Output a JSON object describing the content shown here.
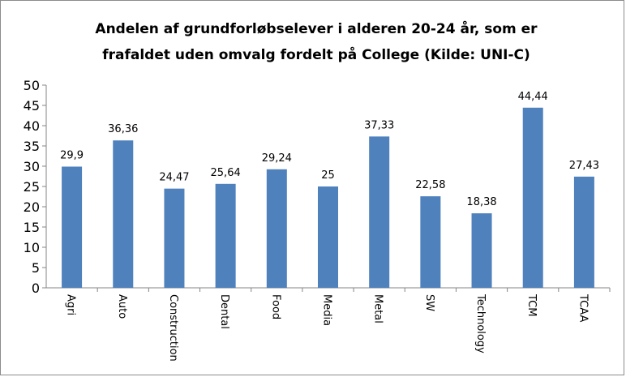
{
  "chart_data": {
    "type": "bar",
    "title": "Andelen af grundforløbselever i alderen 20-24 år, som er frafaldet uden omvalg fordelt på College (Kilde: UNI-C)",
    "categories": [
      "Agri",
      "Auto",
      "Construction",
      "Dental",
      "Food",
      "Media",
      "Metal",
      "SW",
      "Technology",
      "TCM",
      "TCAA"
    ],
    "values": [
      29.9,
      36.36,
      24.47,
      25.64,
      29.24,
      25,
      37.33,
      22.58,
      18.38,
      44.44,
      27.43
    ],
    "value_labels": [
      "29,9",
      "36,36",
      "24,47",
      "25,64",
      "29,24",
      "25",
      "37,33",
      "22,58",
      "18,38",
      "44,44",
      "27,43"
    ],
    "color": "#4f81bd",
    "ylim": [
      0,
      50
    ],
    "yticks": [
      0,
      5,
      10,
      15,
      20,
      25,
      30,
      35,
      40,
      45,
      50
    ],
    "grid": false
  }
}
